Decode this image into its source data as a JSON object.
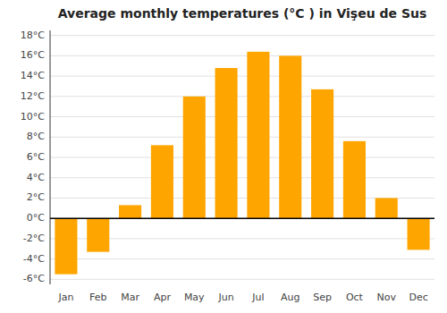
{
  "chart_data": {
    "type": "bar",
    "title": "Average monthly temperatures (°C ) in Vişeu de Sus",
    "categories": [
      "Jan",
      "Feb",
      "Mar",
      "Apr",
      "May",
      "Jun",
      "Jul",
      "Aug",
      "Sep",
      "Oct",
      "Nov",
      "Dec"
    ],
    "values": [
      -5.5,
      -3.3,
      1.3,
      7.2,
      12.0,
      14.8,
      16.4,
      16.0,
      12.7,
      7.6,
      2.0,
      -3.1
    ],
    "color": "#FFA500",
    "ylim": [
      -6.5,
      18.5
    ],
    "yticks": [
      {
        "value": -6,
        "label": "-6°C"
      },
      {
        "value": -4,
        "label": "-4°C"
      },
      {
        "value": -2,
        "label": "-2°C"
      },
      {
        "value": 0,
        "label": "0°C"
      },
      {
        "value": 2,
        "label": "2°C"
      },
      {
        "value": 4,
        "label": "4°C"
      },
      {
        "value": 6,
        "label": "6°C"
      },
      {
        "value": 8,
        "label": "8°C"
      },
      {
        "value": 10,
        "label": "10°C"
      },
      {
        "value": 12,
        "label": "12°C"
      },
      {
        "value": 14,
        "label": "14°C"
      },
      {
        "value": 16,
        "label": "16°C"
      },
      {
        "value": 18,
        "label": "18°C"
      }
    ],
    "grid": true
  }
}
